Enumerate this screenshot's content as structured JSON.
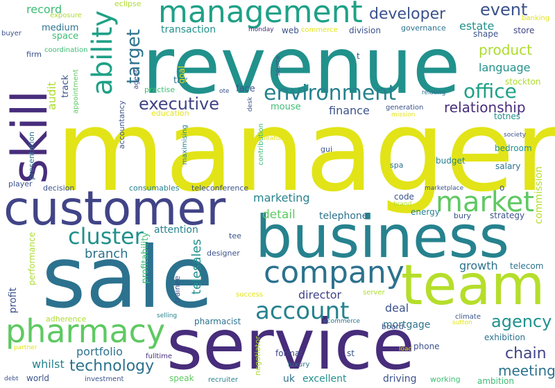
{
  "palette": {
    "yellow": "#e2e418",
    "lime": "#addc30",
    "green": "#5ec962",
    "mint": "#3dbc74",
    "teal": "#1fa187",
    "aqua": "#21918c",
    "cyan": "#26828e",
    "blue": "#2c728e",
    "indigo": "#3b528b",
    "slate": "#414487",
    "violet": "#472d7b",
    "purple": "#440154",
    "light": "#b5de2b"
  },
  "words": [
    "manager",
    "revenue",
    "sale",
    "service",
    "business",
    "customer",
    "team",
    "skill",
    "management",
    "pharmacy",
    "company",
    "market",
    "ability",
    "environment",
    "account",
    "cluster",
    "office",
    "executive",
    "developer",
    "technology",
    "target",
    "event",
    "relationship",
    "agency",
    "product",
    "chain",
    "meeting",
    "director",
    "marketing",
    "telesales",
    "branch",
    "detail",
    "estate",
    "language",
    "finance",
    "growth",
    "profitability",
    "record",
    "portfolio",
    "whilst",
    "audit",
    "deal",
    "profit",
    "attention",
    "performance",
    "mortgage",
    "excellent",
    "driving",
    "telephone",
    "commission",
    "transaction",
    "medium",
    "space",
    "track",
    "tax",
    "face",
    "mouse",
    "goal",
    "telecom",
    "strategy",
    "exhibition",
    "salary",
    "budget",
    "bedroom",
    "stockton",
    "totnes",
    "division",
    "governance",
    "store",
    "shape",
    "web",
    "commerce",
    "monday",
    "eclipse",
    "exposure",
    "banking",
    "buyer",
    "firm",
    "coordination",
    "appointment",
    "agent",
    "practise",
    "education",
    "accountancy",
    "presentation",
    "player",
    "decision",
    "consumables",
    "teleconference",
    "gui",
    "spa",
    "code",
    "energy",
    "bury",
    "tee",
    "designer",
    "trainee",
    "success",
    "server",
    "selling",
    "pharmacist",
    "adherence",
    "ecommerce",
    "board",
    "climate",
    "sutton",
    "fulltime",
    "speak",
    "recruiter",
    "negotiator",
    "luxury",
    "format",
    "st",
    "phone",
    "load",
    "working",
    "ambition",
    "uk",
    "investment",
    "world",
    "debt",
    "partner",
    "marketplace",
    "brand",
    "society",
    "relating",
    "generation",
    "mission",
    "source",
    "desk",
    "ote",
    "contribution",
    "feature",
    "maximising",
    "t",
    "o"
  ]
}
